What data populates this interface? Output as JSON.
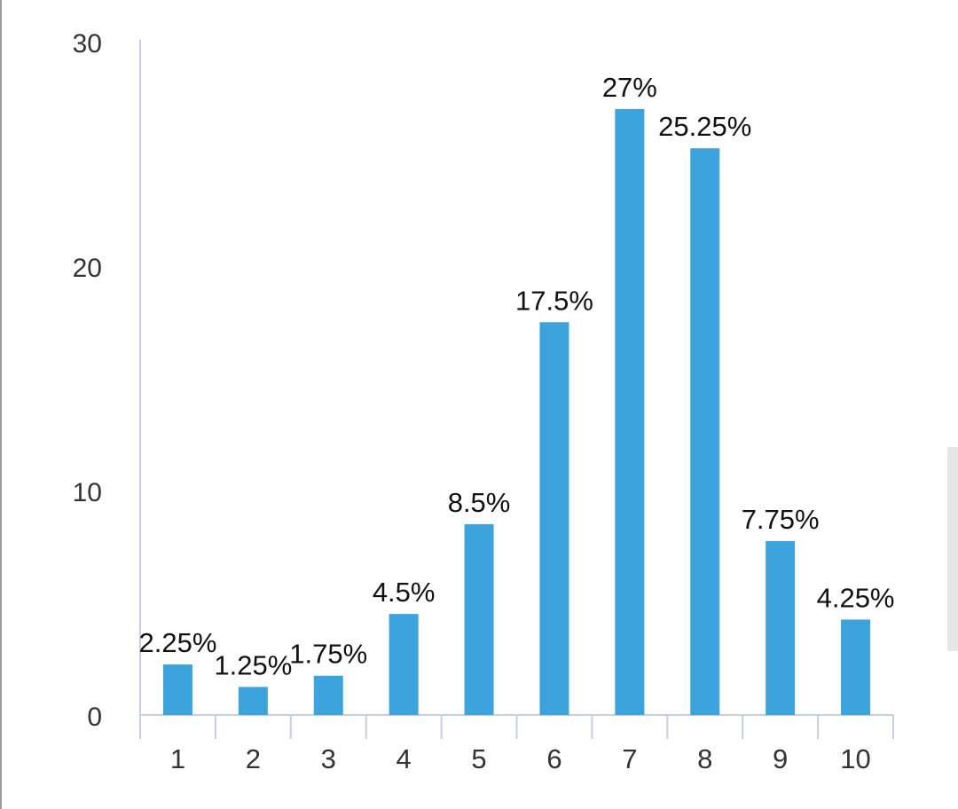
{
  "chart_data": {
    "type": "bar",
    "categories": [
      "1",
      "2",
      "3",
      "4",
      "5",
      "6",
      "7",
      "8",
      "9",
      "10"
    ],
    "values": [
      2.25,
      1.25,
      1.75,
      4.5,
      8.5,
      17.5,
      27,
      25.25,
      7.75,
      4.25
    ],
    "data_labels": [
      "2.25%",
      "1.25%",
      "1.75%",
      "4.5%",
      "8.5%",
      "17.5%",
      "27%",
      "25.25%",
      "7.75%",
      "4.25%"
    ],
    "yticks": [
      "0",
      "10",
      "20",
      "30"
    ],
    "ylim": [
      0,
      30
    ],
    "title": "",
    "xlabel": "",
    "ylabel": "",
    "bar_color": "#3ca3dc",
    "axis_color": "#c5cfe0",
    "grid": false,
    "legend": "none"
  }
}
